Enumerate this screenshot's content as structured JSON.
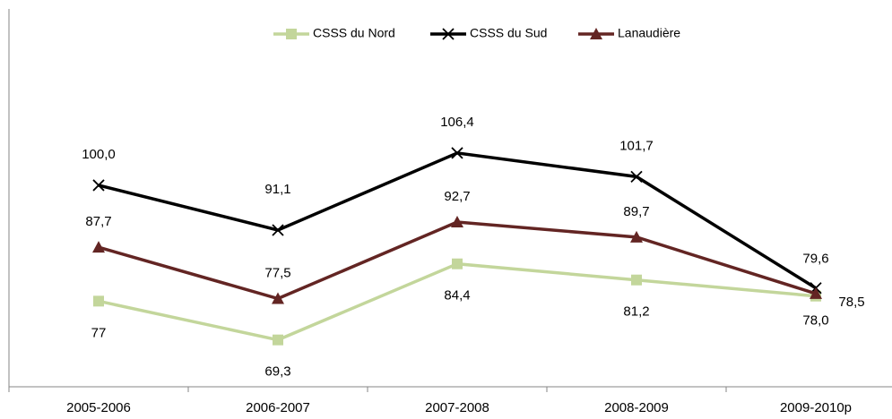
{
  "chart_data": {
    "type": "line",
    "categories": [
      "2005-2006",
      "2006-2007",
      "2007-2008",
      "2008-2009",
      "2009-2010p"
    ],
    "series": [
      {
        "name": "CSSS du Nord",
        "color": "#c3d69b",
        "marker": "square",
        "values": [
          77,
          69.3,
          84.4,
          81.2,
          78.0
        ],
        "value_labels": [
          "77",
          "69,3",
          "84,4",
          "81,2",
          "78,0"
        ]
      },
      {
        "name": "CSSS du Sud",
        "color": "#000000",
        "marker": "x",
        "values": [
          100.0,
          91.1,
          106.4,
          101.7,
          79.6
        ],
        "value_labels": [
          "100,0",
          "91,1",
          "106,4",
          "101,7",
          "79,6"
        ]
      },
      {
        "name": "Lanaudière",
        "color": "#632523",
        "marker": "triangle",
        "values": [
          87.7,
          77.5,
          92.7,
          89.7,
          78.5
        ],
        "value_labels": [
          "87,7",
          "77,5",
          "92,7",
          "89,7",
          "78,5"
        ]
      }
    ],
    "ylim": [
      60,
      135
    ],
    "legend": "top"
  }
}
